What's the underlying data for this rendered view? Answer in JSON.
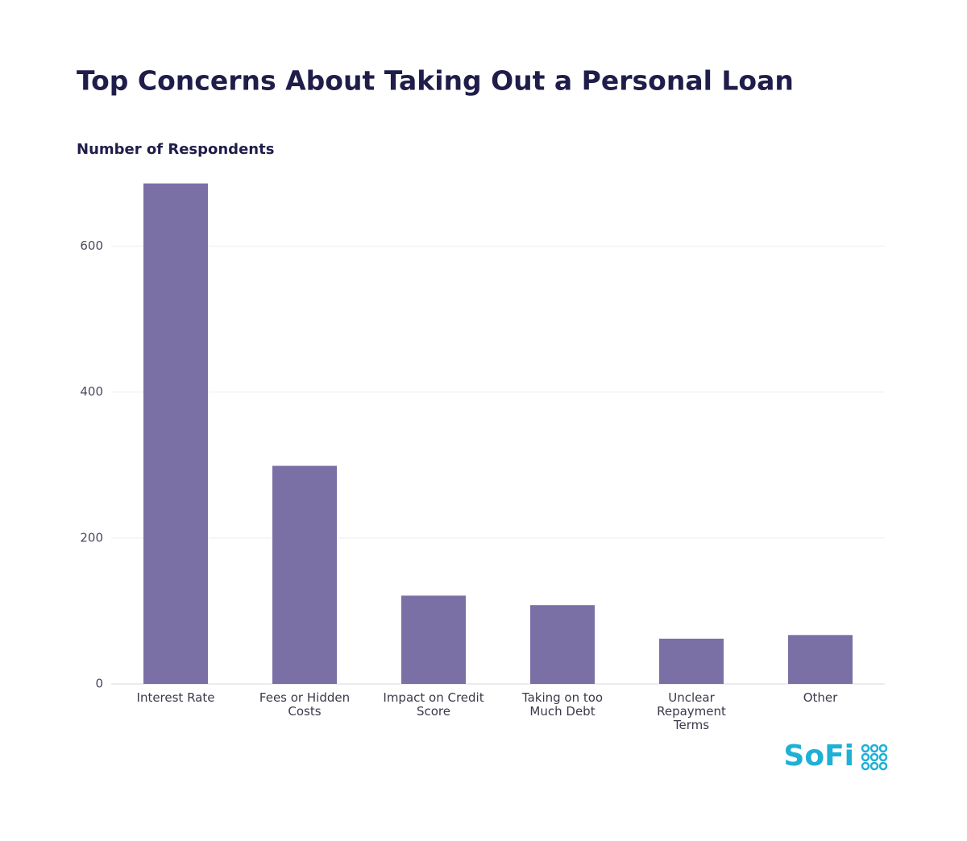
{
  "chart_data": {
    "type": "bar",
    "title": "Top Concerns About Taking Out a Personal Loan",
    "y_label": "Number of Respondents",
    "categories": [
      "Interest Rate",
      "Fees or Hidden Costs",
      "Impact on Credit Score",
      "Taking on too Much Debt",
      "Unclear Repayment Terms",
      "Other"
    ],
    "values": [
      686,
      299,
      121,
      108,
      62,
      67
    ],
    "color": "#7a70a6",
    "ylim": [
      0,
      700
    ],
    "yticks": [
      0,
      200,
      400,
      600
    ],
    "grid": true
  },
  "logo": "SoFi"
}
